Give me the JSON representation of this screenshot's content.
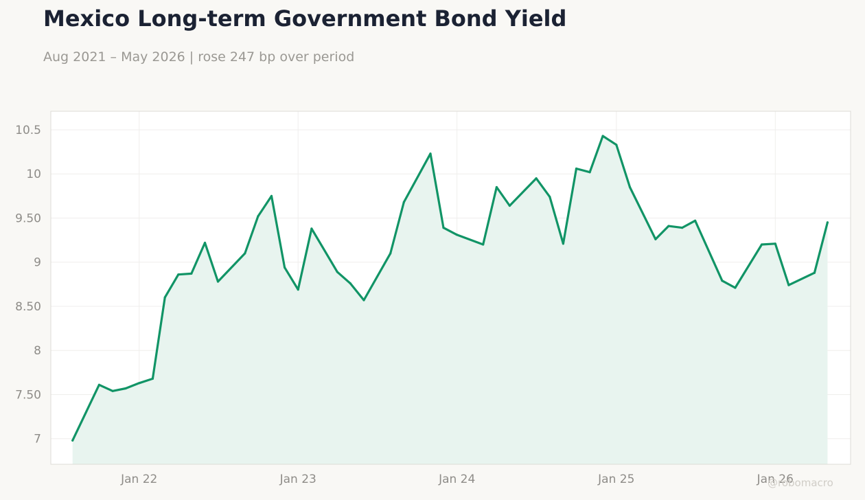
{
  "title": "Mexico Long-term Government Bond Yield",
  "subtitle": "Aug 2021 – May 2026 | rose 247 bp over period",
  "watermark": "@robomacro",
  "colors": {
    "line": "#119466",
    "fill": "#e8f4ef",
    "grid": "#efeeec",
    "plot_border": "#dddbd6",
    "plot_background": "#ffffff"
  },
  "chart_data": {
    "type": "line",
    "title": "Mexico Long-term Government Bond Yield",
    "subtitle": "Aug 2021 – May 2026 | rose 247 bp over period",
    "xlabel": "",
    "ylabel": "",
    "x_range": [
      "2021-06-12",
      "2026-06-23"
    ],
    "ylim": [
      6.71,
      10.71
    ],
    "grid": true,
    "legend": "none",
    "area_fill": true,
    "x_ticks": [
      {
        "date": "2022-01-01",
        "label": "Jan 22"
      },
      {
        "date": "2023-01-01",
        "label": "Jan 23"
      },
      {
        "date": "2024-01-01",
        "label": "Jan 24"
      },
      {
        "date": "2025-01-01",
        "label": "Jan 25"
      },
      {
        "date": "2026-01-01",
        "label": "Jan 26"
      }
    ],
    "y_ticks": [
      {
        "value": 7,
        "label": "7"
      },
      {
        "value": 7.5,
        "label": "7.50"
      },
      {
        "value": 8,
        "label": "8"
      },
      {
        "value": 8.5,
        "label": "8.50"
      },
      {
        "value": 9,
        "label": "9"
      },
      {
        "value": 9.5,
        "label": "9.50"
      },
      {
        "value": 10,
        "label": "10"
      },
      {
        "value": 10.5,
        "label": "10.5"
      }
    ],
    "series": [
      {
        "x": [
          "2021-08-01",
          "2021-10-01",
          "2021-11-01",
          "2021-12-01",
          "2022-01-01",
          "2022-02-01",
          "2022-03-01",
          "2022-04-01",
          "2022-05-01",
          "2022-06-01",
          "2022-07-01",
          "2022-09-01",
          "2022-10-01",
          "2022-11-01",
          "2022-12-01",
          "2023-01-01",
          "2023-02-01",
          "2023-04-01",
          "2023-05-01",
          "2023-06-01",
          "2023-08-01",
          "2023-09-01",
          "2023-11-01",
          "2023-12-01",
          "2024-01-01",
          "2024-03-01",
          "2024-04-01",
          "2024-05-01",
          "2024-07-01",
          "2024-08-01",
          "2024-09-01",
          "2024-10-01",
          "2024-11-01",
          "2024-12-01",
          "2025-01-01",
          "2025-02-01",
          "2025-04-01",
          "2025-05-01",
          "2025-06-01",
          "2025-07-01",
          "2025-09-01",
          "2025-10-01",
          "2025-12-01",
          "2026-01-01",
          "2026-02-01",
          "2026-04-01",
          "2026-05-01"
        ],
        "values": [
          6.98,
          7.61,
          7.54,
          7.57,
          7.63,
          7.68,
          8.6,
          8.86,
          8.87,
          9.22,
          8.78,
          9.1,
          9.52,
          9.75,
          8.94,
          8.69,
          9.38,
          8.89,
          8.76,
          8.57,
          9.1,
          9.68,
          10.23,
          9.39,
          9.31,
          9.2,
          9.85,
          9.64,
          9.95,
          9.74,
          9.21,
          10.06,
          10.02,
          10.43,
          10.33,
          9.85,
          9.26,
          9.41,
          9.39,
          9.47,
          8.79,
          8.71,
          9.2,
          9.21,
          8.74,
          8.88,
          9.45
        ]
      }
    ]
  }
}
